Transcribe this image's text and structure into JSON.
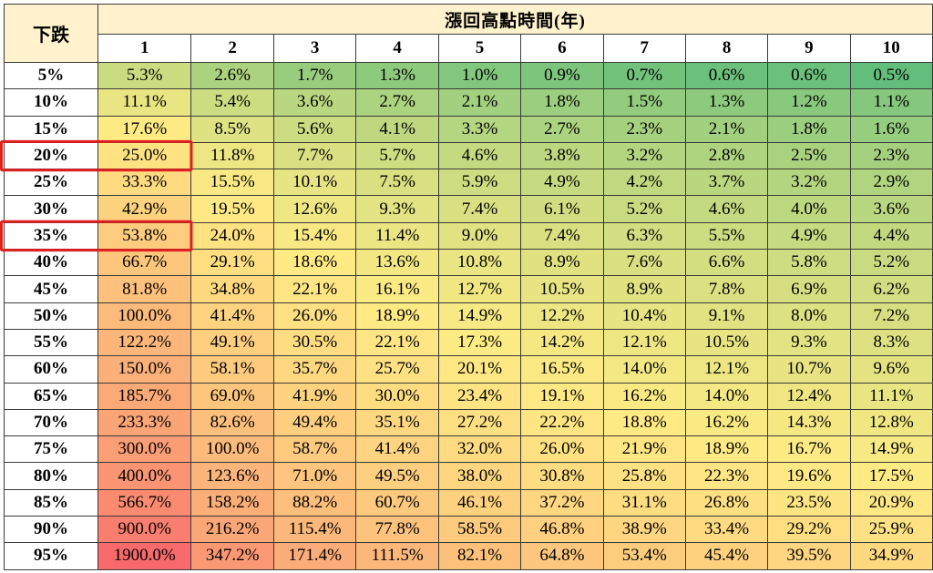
{
  "chart_data": {
    "type": "table",
    "row_header": "下跌",
    "column_header": "漲回高點時間(年)",
    "columns": [
      "1",
      "2",
      "3",
      "4",
      "5",
      "6",
      "7",
      "8",
      "9",
      "10"
    ],
    "rows": [
      {
        "label": "5%",
        "values": [
          "5.3%",
          "2.6%",
          "1.7%",
          "1.3%",
          "1.0%",
          "0.9%",
          "0.7%",
          "0.6%",
          "0.6%",
          "0.5%"
        ]
      },
      {
        "label": "10%",
        "values": [
          "11.1%",
          "5.4%",
          "3.6%",
          "2.7%",
          "2.1%",
          "1.8%",
          "1.5%",
          "1.3%",
          "1.2%",
          "1.1%"
        ]
      },
      {
        "label": "15%",
        "values": [
          "17.6%",
          "8.5%",
          "5.6%",
          "4.1%",
          "3.3%",
          "2.7%",
          "2.3%",
          "2.1%",
          "1.8%",
          "1.6%"
        ]
      },
      {
        "label": "20%",
        "values": [
          "25.0%",
          "11.8%",
          "7.7%",
          "5.7%",
          "4.6%",
          "3.8%",
          "3.2%",
          "2.8%",
          "2.5%",
          "2.3%"
        ]
      },
      {
        "label": "25%",
        "values": [
          "33.3%",
          "15.5%",
          "10.1%",
          "7.5%",
          "5.9%",
          "4.9%",
          "4.2%",
          "3.7%",
          "3.2%",
          "2.9%"
        ]
      },
      {
        "label": "30%",
        "values": [
          "42.9%",
          "19.5%",
          "12.6%",
          "9.3%",
          "7.4%",
          "6.1%",
          "5.2%",
          "4.6%",
          "4.0%",
          "3.6%"
        ]
      },
      {
        "label": "35%",
        "values": [
          "53.8%",
          "24.0%",
          "15.4%",
          "11.4%",
          "9.0%",
          "7.4%",
          "6.3%",
          "5.5%",
          "4.9%",
          "4.4%"
        ]
      },
      {
        "label": "40%",
        "values": [
          "66.7%",
          "29.1%",
          "18.6%",
          "13.6%",
          "10.8%",
          "8.9%",
          "7.6%",
          "6.6%",
          "5.8%",
          "5.2%"
        ]
      },
      {
        "label": "45%",
        "values": [
          "81.8%",
          "34.8%",
          "22.1%",
          "16.1%",
          "12.7%",
          "10.5%",
          "8.9%",
          "7.8%",
          "6.9%",
          "6.2%"
        ]
      },
      {
        "label": "50%",
        "values": [
          "100.0%",
          "41.4%",
          "26.0%",
          "18.9%",
          "14.9%",
          "12.2%",
          "10.4%",
          "9.1%",
          "8.0%",
          "7.2%"
        ]
      },
      {
        "label": "55%",
        "values": [
          "122.2%",
          "49.1%",
          "30.5%",
          "22.1%",
          "17.3%",
          "14.2%",
          "12.1%",
          "10.5%",
          "9.3%",
          "8.3%"
        ]
      },
      {
        "label": "60%",
        "values": [
          "150.0%",
          "58.1%",
          "35.7%",
          "25.7%",
          "20.1%",
          "16.5%",
          "14.0%",
          "12.1%",
          "10.7%",
          "9.6%"
        ]
      },
      {
        "label": "65%",
        "values": [
          "185.7%",
          "69.0%",
          "41.9%",
          "30.0%",
          "23.4%",
          "19.1%",
          "16.2%",
          "14.0%",
          "12.4%",
          "11.1%"
        ]
      },
      {
        "label": "70%",
        "values": [
          "233.3%",
          "82.6%",
          "49.4%",
          "35.1%",
          "27.2%",
          "22.2%",
          "18.8%",
          "16.2%",
          "14.3%",
          "12.8%"
        ]
      },
      {
        "label": "75%",
        "values": [
          "300.0%",
          "100.0%",
          "58.7%",
          "41.4%",
          "32.0%",
          "26.0%",
          "21.9%",
          "18.9%",
          "16.7%",
          "14.9%"
        ]
      },
      {
        "label": "80%",
        "values": [
          "400.0%",
          "123.6%",
          "71.0%",
          "49.5%",
          "38.0%",
          "30.8%",
          "25.8%",
          "22.3%",
          "19.6%",
          "17.5%"
        ]
      },
      {
        "label": "85%",
        "values": [
          "566.7%",
          "158.2%",
          "88.2%",
          "60.7%",
          "46.1%",
          "37.2%",
          "31.1%",
          "26.8%",
          "23.5%",
          "20.9%"
        ]
      },
      {
        "label": "90%",
        "values": [
          "900.0%",
          "216.2%",
          "115.4%",
          "77.8%",
          "58.5%",
          "46.8%",
          "38.9%",
          "33.4%",
          "29.2%",
          "25.9%"
        ]
      },
      {
        "label": "95%",
        "values": [
          "1900.0%",
          "347.2%",
          "171.4%",
          "111.5%",
          "82.1%",
          "64.8%",
          "53.4%",
          "45.4%",
          "39.5%",
          "34.9%"
        ]
      }
    ],
    "highlighted_rows": [
      "20%",
      "35%"
    ],
    "highlight_color": "#e02020",
    "colors": {
      "header_fill": "#fff2cc",
      "scale_low": "#63be7b",
      "scale_mid": "#ffeb84",
      "scale_high": "#f8696b"
    }
  }
}
